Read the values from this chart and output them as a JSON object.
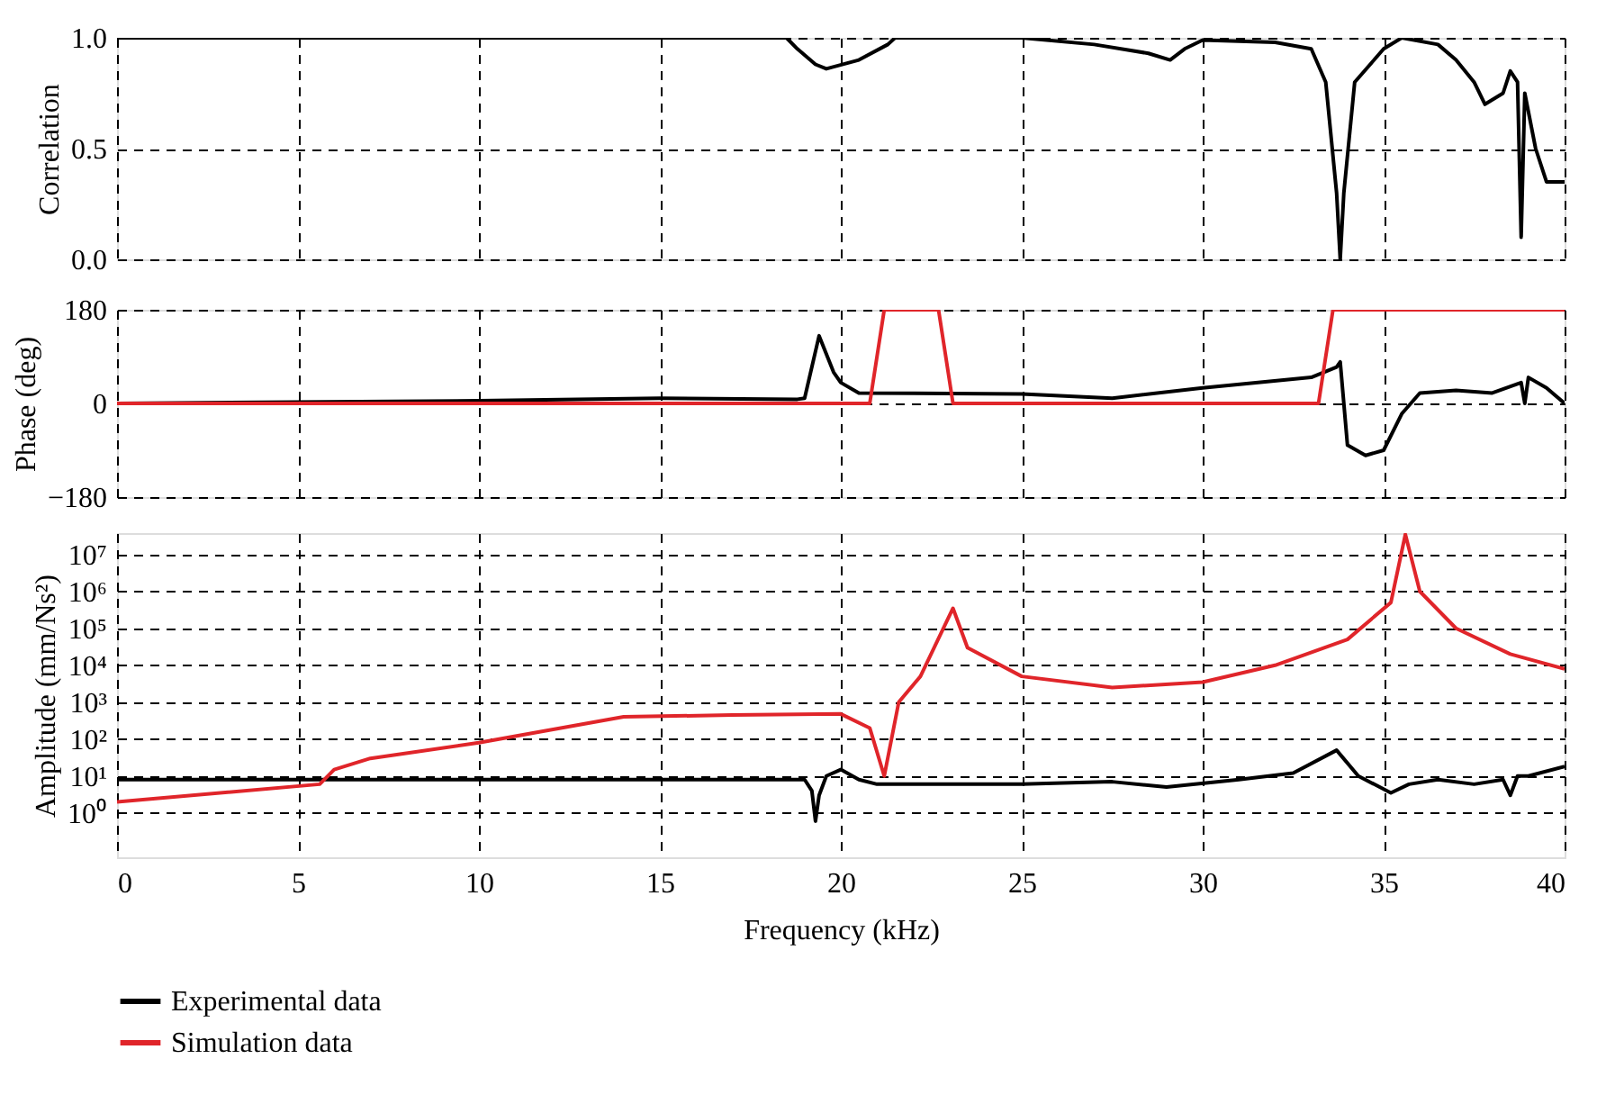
{
  "chart_data": [
    {
      "type": "line",
      "ylabel": "Correlation",
      "xlim": [
        0,
        40
      ],
      "xticks": [
        0,
        5,
        10,
        15,
        20,
        25,
        30,
        35,
        40
      ],
      "ylim": [
        0,
        1
      ],
      "yticks": [
        {
          "value": 0,
          "label": "0.0"
        },
        0.5,
        {
          "value": 1,
          "label": "1.0"
        }
      ],
      "grid": true,
      "tick_labels": "y",
      "series": [
        {
          "color": "#000000",
          "x": [
            0,
            18,
            18.5,
            18.8,
            19.3,
            19.6,
            20.5,
            21.3,
            21.5,
            25,
            27,
            28.5,
            29.1,
            29.5,
            30,
            32,
            33,
            33.4,
            33.7,
            33.8,
            33.9,
            34.2,
            35,
            35.5,
            36.5,
            37,
            37.5,
            37.8,
            38.3,
            38.5,
            38.7,
            38.8,
            38.9,
            39.2,
            39.5,
            40
          ],
          "values": [
            1,
            1,
            1,
            0.95,
            0.88,
            0.86,
            0.9,
            0.97,
            1,
            1,
            0.97,
            0.93,
            0.9,
            0.95,
            0.99,
            0.98,
            0.95,
            0.8,
            0.3,
            0,
            0.3,
            0.8,
            0.95,
            1,
            0.97,
            0.9,
            0.8,
            0.7,
            0.75,
            0.85,
            0.8,
            0.1,
            0.75,
            0.5,
            0.35,
            0.35
          ]
        }
      ]
    },
    {
      "type": "line",
      "ylabel": "Phase (deg)",
      "xlim": [
        0,
        40
      ],
      "xticks": [
        0,
        5,
        10,
        15,
        20,
        25,
        30,
        35,
        40
      ],
      "ylim": [
        -180,
        180
      ],
      "yticks": [
        -180,
        0,
        180
      ],
      "grid": true,
      "tick_labels": "y",
      "series": [
        {
          "color": "#000000",
          "x": [
            0,
            10,
            15,
            18.8,
            19.0,
            19.4,
            19.8,
            20,
            20.5,
            25,
            27.5,
            30,
            33,
            33.7,
            33.8,
            34,
            34.5,
            35,
            35.5,
            36,
            37,
            38,
            38.8,
            38.9,
            39,
            39.5,
            40
          ],
          "values": [
            0,
            5,
            10,
            8,
            10,
            130,
            60,
            40,
            20,
            18,
            10,
            30,
            50,
            70,
            80,
            -80,
            -100,
            -90,
            -20,
            20,
            25,
            20,
            40,
            0,
            50,
            30,
            0
          ]
        },
        {
          "color": "#e0252a",
          "x": [
            0,
            20.8,
            21.2,
            22.7,
            23.1,
            33.2,
            33.6,
            40
          ],
          "values": [
            0,
            0,
            180,
            180,
            0,
            0,
            180,
            180
          ]
        }
      ]
    },
    {
      "type": "line",
      "ylabel": "Amplitude (mm/Ns²)",
      "xlabel": "Frequency (kHz)",
      "log": true,
      "xlim": [
        0,
        40
      ],
      "xticks": [
        0,
        5,
        10,
        15,
        20,
        25,
        30,
        35,
        40
      ],
      "ylim": [
        0.063,
        38000000
      ],
      "yticks": [
        {
          "value": 1,
          "label": "10⁰"
        },
        {
          "value": 10,
          "label": "10¹"
        },
        {
          "value": 100,
          "label": "10²"
        },
        {
          "value": 1000,
          "label": "10³"
        },
        {
          "value": 10000,
          "label": "10⁴"
        },
        {
          "value": 100000,
          "label": "10⁵"
        },
        {
          "value": 1000000,
          "label": "10⁶"
        },
        {
          "value": 10000000,
          "label": "10⁷"
        }
      ],
      "grid": true,
      "legend": "bottom",
      "series": [
        {
          "name": "Experimental data",
          "color": "#000000",
          "x": [
            0,
            10,
            19,
            19.2,
            19.3,
            19.4,
            19.6,
            20,
            20.5,
            21,
            25,
            27.5,
            29,
            31,
            32.5,
            33.7,
            34.3,
            35.2,
            35.7,
            36.5,
            37.5,
            38.3,
            38.5,
            38.7,
            39,
            40
          ],
          "values": [
            8,
            8,
            8,
            4,
            0.6,
            3,
            10,
            15,
            8,
            6,
            6,
            7,
            5,
            8,
            12,
            50,
            10,
            3.5,
            6,
            8,
            6,
            8,
            3,
            10,
            10,
            18
          ]
        },
        {
          "name": "Simulation data",
          "color": "#e0252a",
          "x": [
            0,
            5.6,
            6,
            7,
            10,
            14,
            17,
            20,
            20.8,
            21.2,
            21.6,
            22.2,
            23.1,
            23.5,
            25,
            27.5,
            30,
            32,
            34,
            35.2,
            35.6,
            36,
            37,
            38.5,
            40
          ],
          "values": [
            2,
            6,
            15,
            30,
            80,
            400,
            450,
            480,
            200,
            10,
            1000,
            5000,
            350000,
            30000,
            5000,
            2500,
            3500,
            10000,
            50000,
            500000,
            35000000,
            1000000,
            100000,
            20000,
            8000
          ]
        }
      ]
    }
  ]
}
